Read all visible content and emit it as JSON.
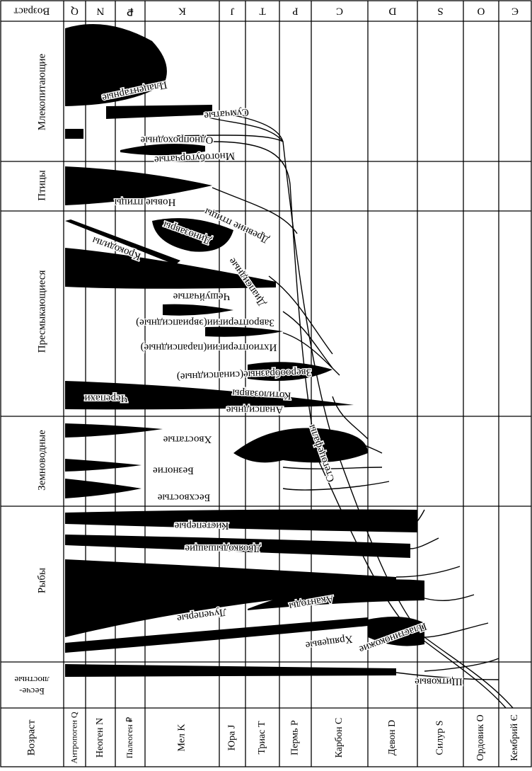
{
  "axis_labels": {
    "top": "Возраст",
    "bottom": "Возраст"
  },
  "periods": [
    {
      "letter": "Q",
      "name": "Антропоген Q"
    },
    {
      "letter": "N",
      "name": "Неоген N"
    },
    {
      "letter": "₽",
      "name": "Палеоген ₽"
    },
    {
      "letter": "K",
      "name": "Мел K"
    },
    {
      "letter": "J",
      "name": "Юра J"
    },
    {
      "letter": "T",
      "name": "Триас T"
    },
    {
      "letter": "P",
      "name": "Пермь P"
    },
    {
      "letter": "C",
      "name": "Карбон C"
    },
    {
      "letter": "D",
      "name": "Девон D"
    },
    {
      "letter": "S",
      "name": "Силур S"
    },
    {
      "letter": "O",
      "name": "Ордовик O"
    },
    {
      "letter": "Є",
      "name": "Кембрий Є"
    }
  ],
  "groups": [
    "Млекопитающие",
    "Птицы",
    "Пресмыкающиеся",
    "Земноводные",
    "Рыбы",
    "Бесче-люстные"
  ],
  "taxa": [
    "Плацентарные",
    "Сумчатые",
    "Однопроходные",
    "Многобугорчатые",
    "Новые птицы",
    "Древние птицы",
    "Динозавры",
    "Крокодилы",
    "Диапсидные",
    "Чешуйчатые",
    "Завроптеригии(эвриапсидные)",
    "Ихтиоптеригии(парапсидные)",
    "Зверообразные(синапсидные)",
    "Котилозавры",
    "Анапсидные",
    "Черепахи",
    "Хвостатые",
    "Стегоцефалы",
    "Безногие",
    "Бесхвостые",
    "Кистеперые",
    "Двоякодышащие",
    "Лучеперые",
    "Акантоды",
    "Хрящевые",
    "Пластинокожие",
    "Щитковые"
  ]
}
